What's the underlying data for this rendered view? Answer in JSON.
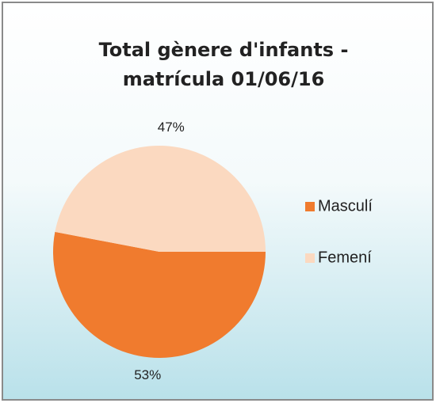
{
  "chart_data": {
    "type": "pie",
    "title": [
      "Total gènere d'infants -",
      "matrícula 01/06/16"
    ],
    "categories": [
      "Masculí",
      "Femení"
    ],
    "values": [
      53,
      47
    ],
    "value_labels": [
      "53%",
      "47%"
    ],
    "colors": [
      "#f07b2e",
      "#fbd9c0"
    ],
    "legend": "right"
  }
}
